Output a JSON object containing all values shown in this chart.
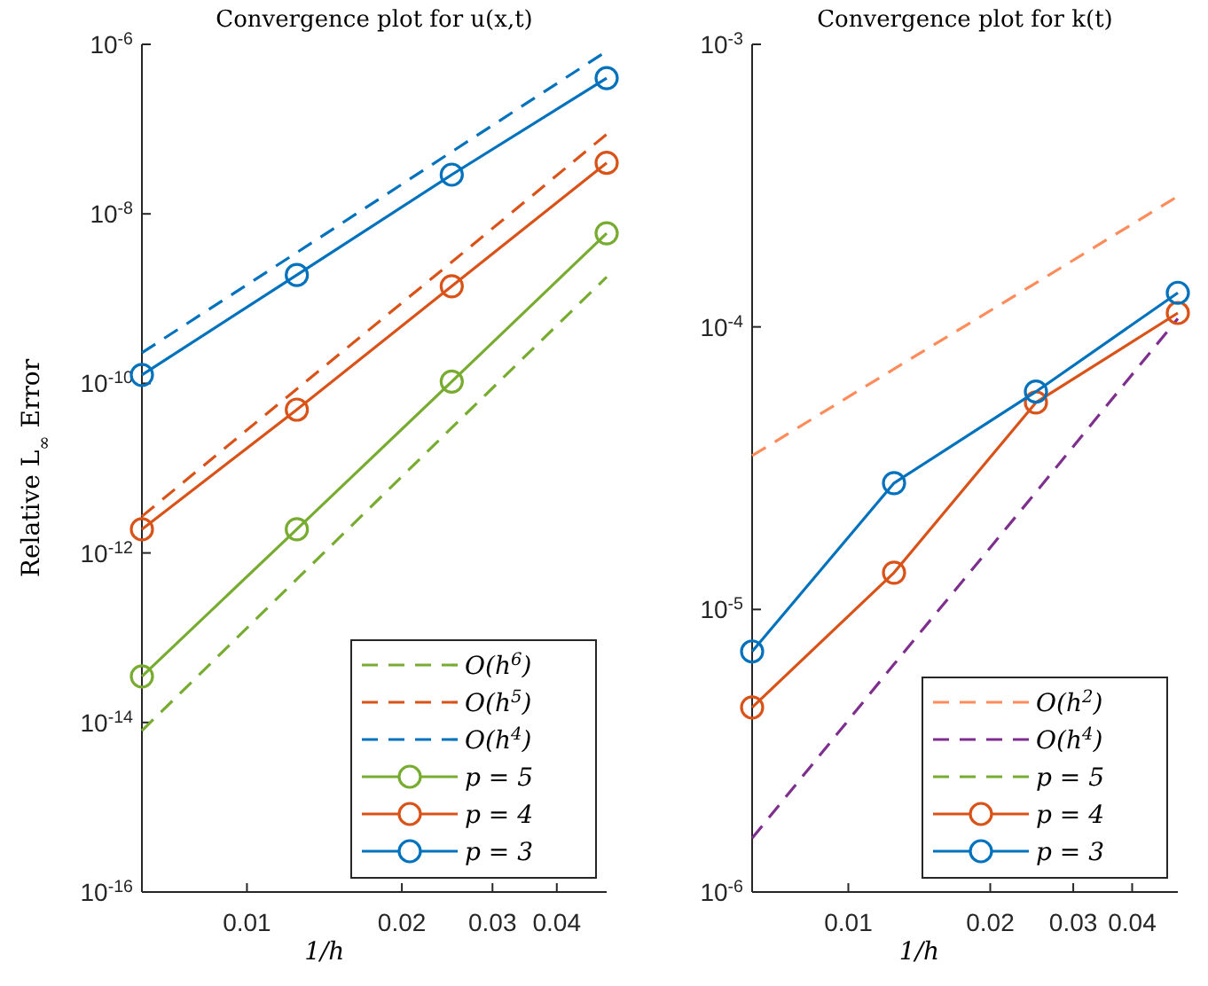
{
  "chart_data": [
    {
      "type": "line",
      "title": "Convergence plot for u(x,t)",
      "xlabel": "1/h",
      "ylabel": "Relative L$_{∞}$ Error",
      "log": "xy",
      "x": [
        0.00625,
        0.0125,
        0.025,
        0.05
      ],
      "xlim": [
        0.00625,
        0.05
      ],
      "xticks": [
        0.01,
        0.02,
        0.03,
        0.04
      ],
      "ylim": [
        1e-16,
        1e-06
      ],
      "yticks": [
        {
          "value": 1e-16,
          "label": "10$^{-16}$"
        },
        {
          "value": 1e-14,
          "label": "10$^{-14}$"
        },
        {
          "value": 1e-12,
          "label": "10$^{-12}$"
        },
        {
          "value": 1e-10,
          "label": "10$^{-10}$"
        },
        {
          "value": 1e-08,
          "label": "10$^{-8}$"
        },
        {
          "value": 1e-06,
          "label": "10$^{-6}$"
        }
      ],
      "grid": false,
      "legend": "bottom right",
      "series": [
        {
          "name": "O(h$^{6}$)",
          "color": "#77ac30",
          "line_style": "dashed",
          "marker": "none",
          "values": [
            8e-15,
            4.9e-13,
            3e-11,
            1.8e-09
          ]
        },
        {
          "name": "O(h$^{5}$)",
          "color": "#d95319",
          "line_style": "dashed",
          "marker": "none",
          "values": [
            2.7e-12,
            8.6e-11,
            2.7e-09,
            8.7e-08
          ]
        },
        {
          "name": "O(h$^{4}$)",
          "color": "#0072bd",
          "line_style": "dashed",
          "marker": "none",
          "values": [
            2.3e-10,
            3.5e-09,
            5.4e-08,
            8.3e-07
          ]
        },
        {
          "name": "p = 5",
          "color": "#77ac30",
          "line_style": "solid",
          "marker": "circle",
          "values": [
            3.5e-14,
            1.9e-12,
            1.05e-10,
            5.9e-09
          ]
        },
        {
          "name": "p = 4",
          "color": "#d95319",
          "line_style": "solid",
          "marker": "circle",
          "values": [
            1.9e-12,
            4.9e-11,
            1.4e-09,
            4e-08
          ]
        },
        {
          "name": "p = 3",
          "color": "#0072bd",
          "line_style": "solid",
          "marker": "circle",
          "values": [
            1.26e-10,
            1.9e-09,
            2.9e-08,
            4e-07
          ]
        }
      ]
    },
    {
      "type": "line",
      "title": "Convergence plot for k(t)",
      "xlabel": "1/h",
      "log": "xy",
      "x": [
        0.00625,
        0.0125,
        0.025,
        0.05
      ],
      "xlim": [
        0.00625,
        0.05
      ],
      "xticks": [
        0.01,
        0.02,
        0.03,
        0.04
      ],
      "ylim": [
        1e-06,
        0.001
      ],
      "yticks": [
        {
          "value": 1e-06,
          "label": "10$^{-6}$"
        },
        {
          "value": 1e-05,
          "label": "10$^{-5}$"
        },
        {
          "value": 0.0001,
          "label": "10$^{-4}$"
        },
        {
          "value": 0.001,
          "label": "10$^{-3}$"
        }
      ],
      "grid": false,
      "legend": "bottom right",
      "series": [
        {
          "name": "O(h$^{2}$)",
          "color": "#ff8c5a",
          "line_style": "dashed",
          "marker": "none",
          "values": [
            3.5e-05,
            7.1e-05,
            0.000143,
            0.00029
          ]
        },
        {
          "name": "O(h$^{4}$)",
          "color": "#7e2f8e",
          "line_style": "dashed",
          "marker": "none",
          "values": [
            1.55e-06,
            6.4e-06,
            2.6e-05,
            0.000107
          ]
        },
        {
          "name": "p = 5",
          "color": "#77ac30",
          "line_style": "dashed",
          "marker": "none",
          "values": [
            null,
            null,
            null,
            null
          ]
        },
        {
          "name": "p = 4",
          "color": "#d95319",
          "line_style": "solid",
          "marker": "circle",
          "values": [
            4.5e-06,
            1.35e-05,
            5.4e-05,
            0.000112
          ]
        },
        {
          "name": "p = 3",
          "color": "#0072bd",
          "line_style": "solid",
          "marker": "circle",
          "values": [
            7.1e-06,
            2.8e-05,
            5.9e-05,
            0.000132
          ]
        }
      ]
    }
  ]
}
